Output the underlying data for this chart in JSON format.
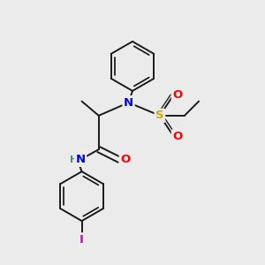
{
  "bg_color": "#ebebeb",
  "bond_color": "#1a1a1a",
  "bond_width": 1.4,
  "atom_colors": {
    "N": "#0000ff",
    "O": "#ff0000",
    "S": "#ccaa00",
    "I": "#cc00cc",
    "H": "#4a8a8a",
    "C": "#1a1a1a"
  },
  "font_size": 9.5,
  "font_size_h": 8.5
}
